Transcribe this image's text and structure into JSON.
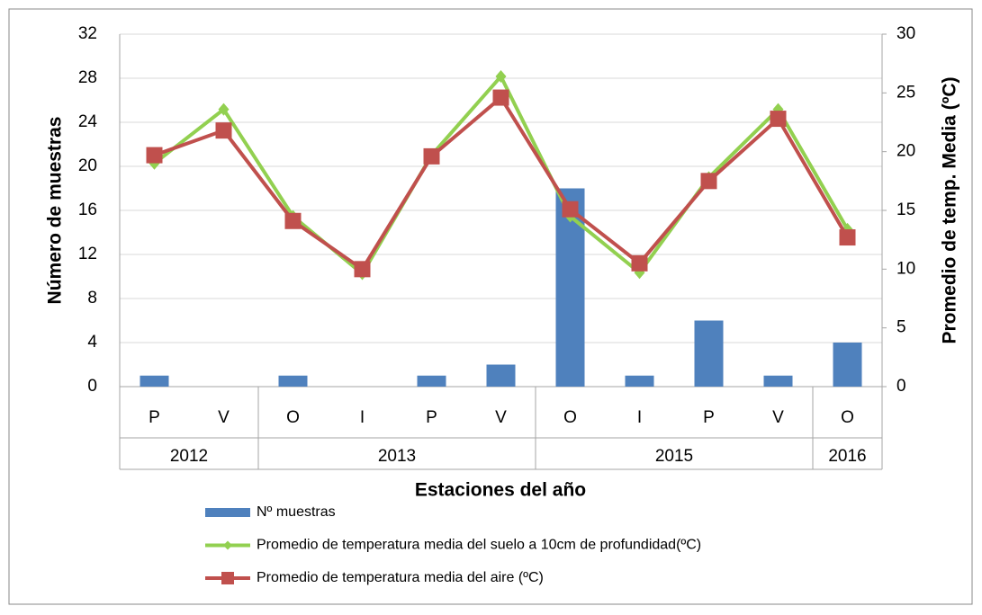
{
  "chart_data": {
    "type": "bar-line",
    "x_label": "Estaciones del año",
    "y_label": "Número de muestras",
    "y2_label": "Promedio de temp. Media (ºC)",
    "categories": [
      "P",
      "V",
      "O",
      "I",
      "P",
      "V",
      "O",
      "I",
      "P",
      "V",
      "O"
    ],
    "years": [
      "2012",
      null,
      "2013",
      null,
      null,
      null,
      "2015",
      null,
      null,
      null,
      "2016"
    ],
    "ylim": [
      0,
      32
    ],
    "yticks": [
      0,
      4,
      8,
      12,
      16,
      20,
      24,
      28,
      32
    ],
    "y2lim": [
      0,
      30
    ],
    "y2ticks": [
      0,
      5,
      10,
      15,
      20,
      25,
      30
    ],
    "grid": true,
    "series": [
      {
        "name": "Nº muestras",
        "type": "bar",
        "color": "#4f81bd",
        "values": [
          1,
          null,
          1,
          null,
          1,
          2,
          18,
          1,
          6,
          1,
          4
        ]
      },
      {
        "name": "Promedio de temperatura media del suelo a 10cm de profundidad(ºC)",
        "type": "line",
        "axis": "y2",
        "marker": "diamond",
        "color": "#92d050",
        "values": [
          19.0,
          23.6,
          14.5,
          9.6,
          19.7,
          26.4,
          14.5,
          9.7,
          17.8,
          23.6,
          13.4
        ]
      },
      {
        "name": "Promedio de temperatura media del aire (ºC)",
        "type": "line",
        "axis": "y2",
        "marker": "square",
        "color": "#c0504d",
        "values": [
          19.7,
          21.8,
          14.1,
          10.0,
          19.6,
          24.6,
          15.1,
          10.5,
          17.5,
          22.8,
          12.7
        ]
      }
    ]
  }
}
